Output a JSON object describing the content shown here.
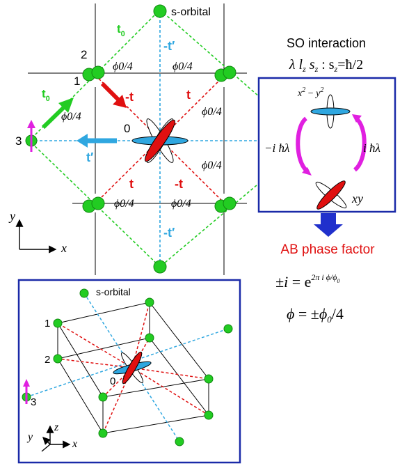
{
  "top_diagram": {
    "s_orbital_label": "s-orbital",
    "hop_t0_top": "t",
    "hop_t0_top_sub": "0",
    "hop_t0_left": "t",
    "hop_t0_left_sub": "0",
    "hop_tprime_top": "-t′",
    "hop_tprime_bottom": "-t′",
    "hop_tprime_left": "t′",
    "hop_minus_t_upper": "-t",
    "hop_minus_t_lower": "-t",
    "hop_t_upper": "t",
    "hop_t_lower": "t",
    "flux_upper_left": "ϕ0/4",
    "flux_upper_right": "ϕ0/4",
    "flux_mid_left": "ϕ0/4",
    "flux_mid_right": "ϕ0/4",
    "flux_right_lower": "ϕ0/4",
    "flux_lower_left": "ϕ0/4",
    "flux_lower_right": "ϕ0/4",
    "site_0": "0",
    "site_1": "1",
    "site_2": "2",
    "site_3": "3",
    "axis_x": "x",
    "axis_y": "y"
  },
  "side_panel": {
    "title": "SO interaction",
    "formula": "λ lz sz : sz=ħ/2",
    "orbital_top": "x² − y²",
    "orbital_bottom": "xy",
    "amp_left": "−i ħλ",
    "amp_right": "i ħλ",
    "result_title": "AB phase factor",
    "phase_eq": "±i = e^(2πiϕ/ϕ0)",
    "phi_eq": "ϕ = ±ϕ0/4"
  },
  "bottom_diagram": {
    "s_orbital_label": "s-orbital",
    "site_0": "0",
    "site_1": "1",
    "site_2": "2",
    "site_3": "3",
    "axis_x": "x",
    "axis_y": "y",
    "axis_z": "z"
  },
  "colors": {
    "green": "#22cc22",
    "blue": "#2fa7e0",
    "red": "#e01010",
    "magenta": "#e020e0",
    "frame": "#1a2aa8"
  }
}
